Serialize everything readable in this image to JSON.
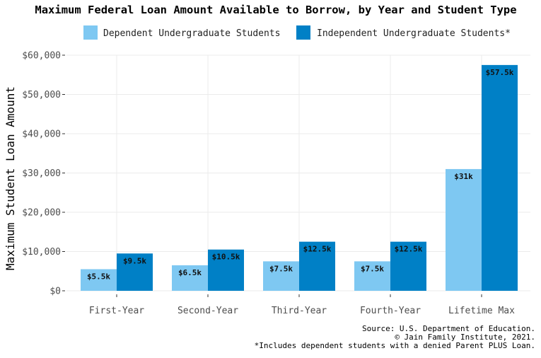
{
  "chart_data": {
    "type": "bar",
    "title": "Maximum Federal Loan Amount Available to Borrow, by Year and Student Type",
    "xlabel": "",
    "ylabel": "Maximum Student Loan Amount",
    "ylim": [
      0,
      60000
    ],
    "yticks": [
      0,
      10000,
      20000,
      30000,
      40000,
      50000,
      60000
    ],
    "ytick_labels": [
      "$0",
      "$10,000",
      "$20,000",
      "$30,000",
      "$40,000",
      "$50,000",
      "$60,000"
    ],
    "categories": [
      "First-Year",
      "Second-Year",
      "Third-Year",
      "Fourth-Year",
      "Lifetime Max"
    ],
    "series": [
      {
        "name": "Dependent Undergraduate Students",
        "color": "#7ec8f2",
        "values": [
          5500,
          6500,
          7500,
          7500,
          31000
        ],
        "labels": [
          "$5.5k",
          "$6.5k",
          "$7.5k",
          "$7.5k",
          "$31k"
        ]
      },
      {
        "name": "Independent Undergraduate Students*",
        "color": "#0080c6",
        "values": [
          9500,
          10500,
          12500,
          12500,
          57500
        ],
        "labels": [
          "$9.5k",
          "$10.5k",
          "$12.5k",
          "$12.5k",
          "$57.5k"
        ]
      }
    ],
    "grid": true,
    "legend_position": "top"
  },
  "caption": {
    "lines": [
      "Source: U.S. Department of Education.",
      "© Jain Family Institute, 2021.",
      "*Includes dependent students with a denied Parent PLUS Loan."
    ]
  }
}
